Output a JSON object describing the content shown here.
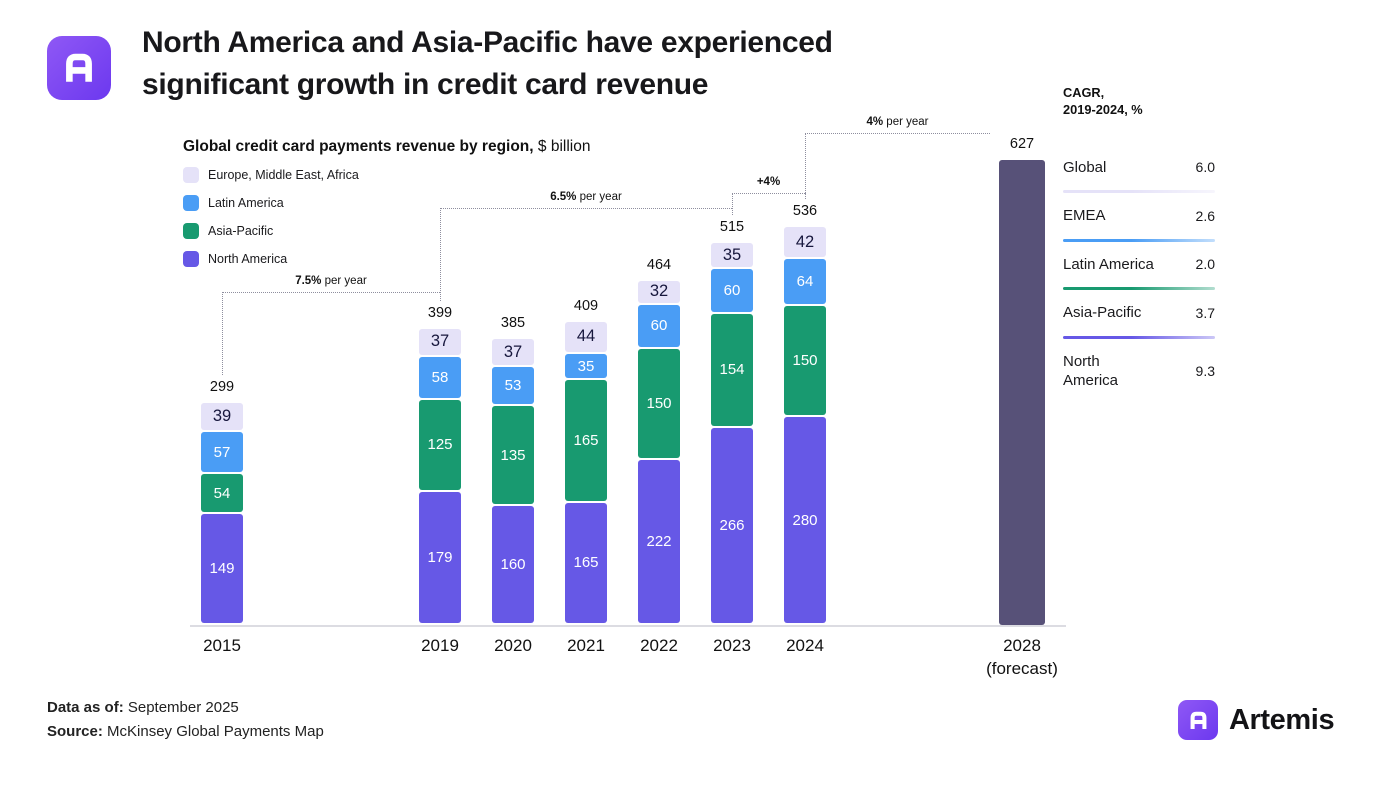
{
  "header": {
    "title_line1": "North America and Asia-Pacific have experienced",
    "title_line2": "significant growth in credit card revenue"
  },
  "chart": {
    "title_bold": "Global credit card payments revenue by region,",
    "title_unit": " $ billion"
  },
  "legend": {
    "items": [
      {
        "label": "Europe, Middle East, Africa",
        "color": "#e5e2f8"
      },
      {
        "label": "Latin America",
        "color": "#4a9df5"
      },
      {
        "label": "Asia-Pacific",
        "color": "#189a70"
      },
      {
        "label": "North America",
        "color": "#6658e6"
      }
    ]
  },
  "chart_data": {
    "type": "bar",
    "stacked": true,
    "title": "Global credit card payments revenue by region",
    "unit": "$ billion",
    "categories": [
      "2015",
      "2019",
      "2020",
      "2021",
      "2022",
      "2023",
      "2024",
      "2028 (forecast)"
    ],
    "tick_lines": [
      [
        "2015"
      ],
      [
        "2019"
      ],
      [
        "2020"
      ],
      [
        "2021"
      ],
      [
        "2022"
      ],
      [
        "2023"
      ],
      [
        "2024"
      ],
      [
        "2028",
        "(forecast)"
      ]
    ],
    "series": [
      {
        "name": "North America",
        "color": "#6658e6",
        "text": "#ffffff",
        "values": [
          149,
          179,
          160,
          165,
          222,
          266,
          280,
          null
        ]
      },
      {
        "name": "Asia-Pacific",
        "color": "#189a70",
        "text": "#ffffff",
        "values": [
          54,
          125,
          135,
          165,
          150,
          154,
          150,
          null
        ]
      },
      {
        "name": "Latin America",
        "color": "#4a9df5",
        "text": "#ffffff",
        "values": [
          57,
          58,
          53,
          35,
          60,
          60,
          64,
          null
        ]
      },
      {
        "name": "Europe, Middle East, Africa",
        "color": "#e5e2f8",
        "text": "#17173d",
        "values": [
          39,
          37,
          37,
          44,
          32,
          35,
          42,
          null
        ]
      }
    ],
    "totals": [
      299,
      399,
      385,
      409,
      464,
      515,
      536,
      627
    ],
    "forecast_bar": {
      "category": "2028 (forecast)",
      "total": 627,
      "color": "#575178"
    },
    "annotations": [
      {
        "rate": "7.5%",
        "suffix": " per year",
        "from_index": 0,
        "to_index": 1
      },
      {
        "rate": "6.5%",
        "suffix": " per year",
        "from_index": 1,
        "to_index": 5
      },
      {
        "rate": "+4%",
        "suffix": "",
        "from_index": 5,
        "to_index": 6
      },
      {
        "rate": "4%",
        "suffix": " per year",
        "from_index": 6,
        "to_index": 7
      }
    ],
    "ylim": [
      0,
      650
    ],
    "grid": false,
    "legend_position": "top-left"
  },
  "cagr_panel": {
    "title_line1": "CAGR,",
    "title_line2": "2019-2024, %",
    "rows": [
      {
        "label": "Global",
        "value": "6.0",
        "line_color": null
      },
      {
        "label": "EMEA",
        "value": "2.6",
        "line_color": "#e5e2f8"
      },
      {
        "label": "Latin America",
        "value": "2.0",
        "line_color": "#4a9df5"
      },
      {
        "label": "Asia-Pacific",
        "value": "3.7",
        "line_color": "#189a70"
      },
      {
        "label": "North America",
        "value": "9.3",
        "line_color": "#6658e6"
      }
    ]
  },
  "footer": {
    "data_as_of_label": "Data as of:",
    "data_as_of_value": " September 2025",
    "source_label": "Source:",
    "source_value": " McKinsey Global Payments Map"
  },
  "branding": {
    "name": "Artemis"
  }
}
